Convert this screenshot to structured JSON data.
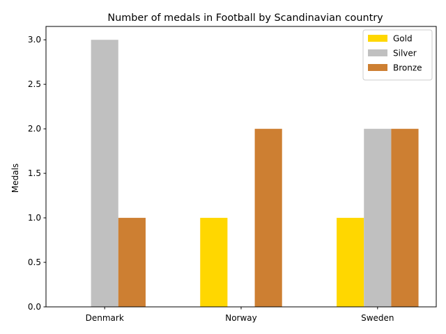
{
  "chart_data": {
    "type": "bar",
    "title": "Number of medals in Football by Scandinavian country",
    "xlabel": "",
    "ylabel": "Medals",
    "categories": [
      "Denmark",
      "Norway",
      "Sweden"
    ],
    "series": [
      {
        "name": "Gold",
        "values": [
          0,
          1,
          1
        ],
        "color": "#ffd700"
      },
      {
        "name": "Silver",
        "values": [
          3,
          0,
          2
        ],
        "color": "#c0c0c0"
      },
      {
        "name": "Bronze",
        "values": [
          1,
          2,
          2
        ],
        "color": "#cd7f32"
      }
    ],
    "ylim": [
      0,
      3.15
    ],
    "yticks": [
      "0.0",
      "0.5",
      "1.0",
      "1.5",
      "2.0",
      "2.5",
      "3.0"
    ],
    "legend_position": "top-right",
    "grid": false
  }
}
